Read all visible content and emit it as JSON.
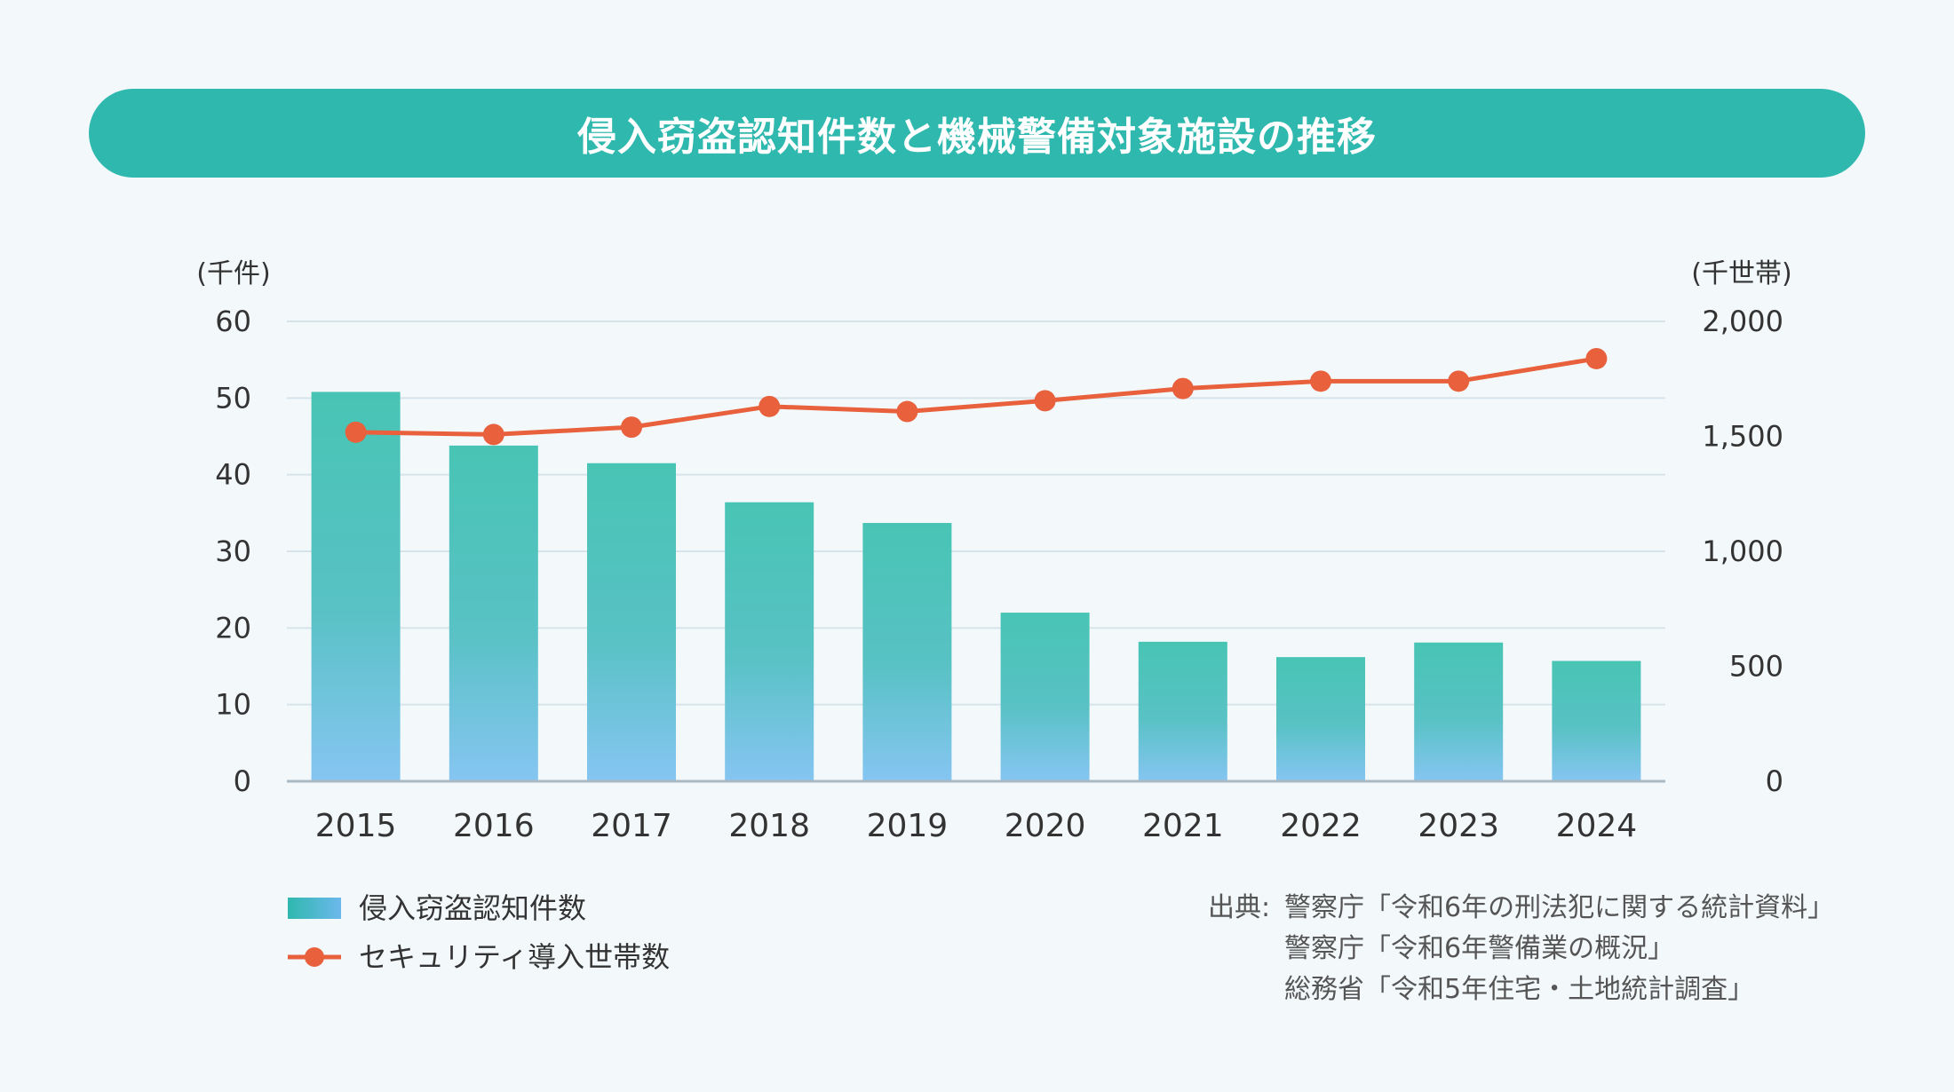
{
  "title": "侵入窃盗認知件数と機械警備対象施設の推移",
  "chart_data": {
    "type": "bar+line",
    "categories": [
      "2015",
      "2016",
      "2017",
      "2018",
      "2019",
      "2020",
      "2021",
      "2022",
      "2023",
      "2024"
    ],
    "left_axis": {
      "unit": "(千件)",
      "ticks": [
        "0",
        "10",
        "20",
        "30",
        "40",
        "50",
        "60"
      ],
      "ylim": [
        0,
        60
      ]
    },
    "right_axis": {
      "unit": "(千世帯)",
      "ticks": [
        "0",
        "500",
        "1,000",
        "1,500",
        "2,000"
      ],
      "ylim": [
        0,
        2000
      ]
    },
    "series": [
      {
        "name": "侵入窃盗認知件数",
        "type": "bar",
        "axis": "left",
        "values": [
          50.8,
          43.8,
          41.5,
          36.4,
          33.7,
          22.0,
          18.2,
          16.2,
          18.1,
          15.7
        ]
      },
      {
        "name": "セキュリティ導入世帯数",
        "type": "line",
        "axis": "right",
        "values": [
          1518,
          1508,
          1540,
          1630,
          1608,
          1655,
          1708,
          1740,
          1740,
          1838
        ]
      }
    ],
    "grid": true,
    "legend_position": "bottom-left",
    "colors": {
      "bar_top": "#48c4b4",
      "bar_bottom": "#86c5f2",
      "line": "#e8613c",
      "grid": "#d7e3ea",
      "axis": "#a9b9c4"
    }
  },
  "source": {
    "label": "出典:",
    "lines": [
      "警察庁「令和6年の刑法犯に関する統計資料」",
      "警察庁「令和6年警備業の概況」",
      "総務省「令和5年住宅・土地統計調査」"
    ]
  }
}
